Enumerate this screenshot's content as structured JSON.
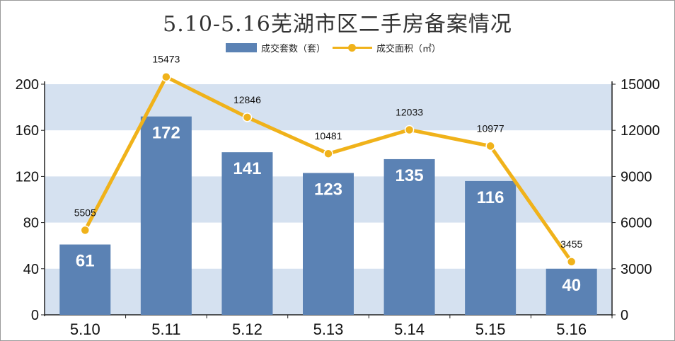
{
  "chart_data": {
    "type": "bar",
    "title": "5.10-5.16芜湖市区二手房备案情况",
    "categories": [
      "5.10",
      "5.11",
      "5.12",
      "5.13",
      "5.14",
      "5.15",
      "5.16"
    ],
    "series": [
      {
        "name": "成交套数（套）",
        "type": "bar",
        "axis": "left",
        "color": "#5b82b4",
        "values": [
          61,
          172,
          141,
          123,
          135,
          116,
          40
        ]
      },
      {
        "name": "成交面积（㎡）",
        "type": "line",
        "axis": "right",
        "color": "#f0b21a",
        "values": [
          5505,
          15473,
          12846,
          10481,
          12033,
          10977,
          3455
        ]
      }
    ],
    "y_left": {
      "ylim": [
        0,
        200
      ],
      "ticks": [
        0,
        40,
        80,
        120,
        160,
        200
      ]
    },
    "y_right": {
      "ylim": [
        0,
        15000
      ],
      "ticks": [
        0,
        3000,
        6000,
        9000,
        12000,
        15000
      ]
    },
    "legend_position": "top-center",
    "band_color": "#d5e1f0"
  }
}
